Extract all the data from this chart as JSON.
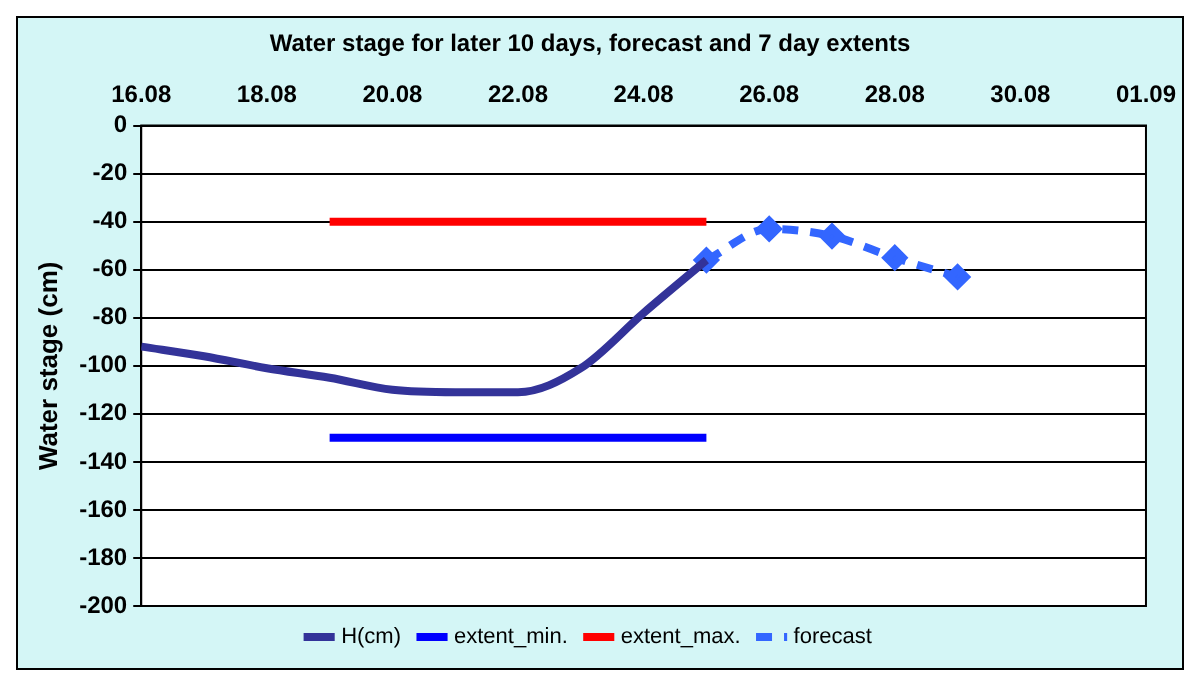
{
  "chart_data": {
    "type": "line",
    "title": "Water stage for later 10 days, forecast and 7 day extents",
    "ylabel": "Water stage (cm)",
    "xlim": [
      "--08-16",
      "--09-01"
    ],
    "xticks": [
      {
        "value": "--08-16",
        "label": "16.08"
      },
      {
        "value": "--08-18",
        "label": "18.08"
      },
      {
        "value": "--08-20",
        "label": "20.08"
      },
      {
        "value": "--08-22",
        "label": "22.08"
      },
      {
        "value": "--08-24",
        "label": "24.08"
      },
      {
        "value": "--08-26",
        "label": "26.08"
      },
      {
        "value": "--08-28",
        "label": "28.08"
      },
      {
        "value": "--08-30",
        "label": "30.08"
      },
      {
        "value": "--09-01",
        "label": "01.09"
      }
    ],
    "ylim": [
      -200,
      0
    ],
    "yticks": [
      -200,
      -180,
      -160,
      -140,
      -120,
      -100,
      -80,
      -60,
      -40,
      -20,
      0
    ],
    "grid": "y",
    "legend": "bottom",
    "series": [
      {
        "name": "H(cm)",
        "color": "#333399",
        "x": [
          "--08-16",
          "--08-17",
          "--08-18",
          "--08-19",
          "--08-20",
          "--08-21",
          "--08-22",
          "--08-23",
          "--08-24",
          "--08-25"
        ],
        "values": [
          -92,
          -96,
          -101,
          -105,
          -110,
          -111,
          -111,
          -101,
          -78,
          -56
        ]
      },
      {
        "name": "extent_min.",
        "color": "#0000ff",
        "x": [
          "--08-19",
          "--08-25"
        ],
        "values": [
          -130,
          -130
        ]
      },
      {
        "name": "extent_max.",
        "color": "#ff0000",
        "x": [
          "--08-19",
          "--08-25"
        ],
        "values": [
          -40,
          -40
        ]
      },
      {
        "name": "forecast",
        "color": "#3366ff",
        "line_style": "dashed",
        "marker": "diamond",
        "x": [
          "--08-25",
          "--08-26",
          "--08-27",
          "--08-28",
          "--08-29"
        ],
        "values": [
          -56,
          -43,
          -46,
          -55,
          -63
        ]
      }
    ]
  }
}
